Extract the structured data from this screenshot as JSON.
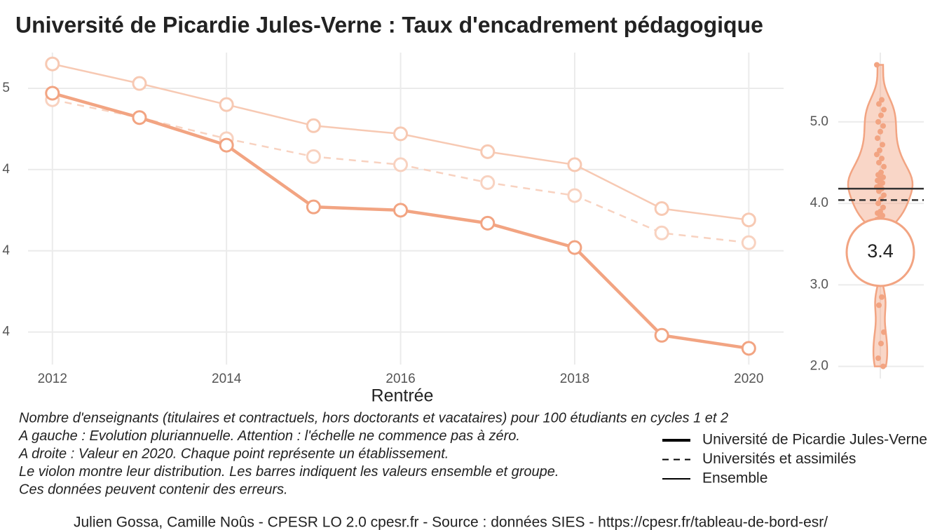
{
  "chart_data": [
    {
      "type": "line",
      "title": "Université de Picardie Jules-Verne  :  Taux d'encadrement pédagogique",
      "x_label": "Rentrée",
      "x": [
        2012,
        2013,
        2014,
        2015,
        2016,
        2017,
        2018,
        2019,
        2020
      ],
      "xlim": [
        2011.72,
        2020.4
      ],
      "xticks": [
        2012,
        2014,
        2016,
        2018,
        2020
      ],
      "ylim": [
        3.3,
        5.22
      ],
      "yticks": [
        {
          "value": 5.0,
          "label": "5"
        },
        {
          "value": 4.5,
          "label": "4"
        },
        {
          "value": 4.0,
          "label": "4"
        },
        {
          "value": 3.5,
          "label": "4"
        }
      ],
      "grid": true,
      "series": [
        {
          "name": "Ensemble",
          "color": "#f7c9b3",
          "dashed": false,
          "width": 2.5,
          "values": [
            5.15,
            5.03,
            4.9,
            4.77,
            4.72,
            4.61,
            4.53,
            4.26,
            4.19
          ]
        },
        {
          "name": "Universités et assimilés",
          "color": "#f8d2c0",
          "dashed": true,
          "width": 2.5,
          "values": [
            4.93,
            4.82,
            4.69,
            4.58,
            4.53,
            4.42,
            4.34,
            4.11,
            4.05
          ]
        },
        {
          "name": "Université de Picardie Jules-Verne",
          "color": "#f2a482",
          "dashed": false,
          "width": 4.5,
          "values": [
            4.97,
            4.82,
            4.65,
            4.27,
            4.25,
            4.17,
            4.02,
            3.48,
            3.4
          ]
        }
      ],
      "legend_order": [
        2,
        1,
        0
      ],
      "caption": [
        "Nombre d'enseignants (titulaires et contractuels, hors doctorants et vacataires) pour 100 étudiants en cycles 1 et 2",
        "A gauche : Evolution pluriannuelle. Attention : l'échelle ne commence pas à zéro.",
        "A droite : Valeur en 2020. Chaque point représente un établissement.",
        "Le violon montre leur distribution. Les barres indiquent les valeurs ensemble et groupe.",
        "Ces données peuvent contenir des erreurs."
      ],
      "footer": "Julien Gossa, Camille Noûs - CPESR LO 2.0 cpesr.fr - Source : données SIES - https://cpesr.fr/tableau-de-bord-esr/"
    },
    {
      "type": "violin",
      "color": "#f2a482",
      "ylim": [
        1.85,
        5.85
      ],
      "yticks": [
        {
          "value": 2,
          "label": "2.0"
        },
        {
          "value": 3,
          "label": "3.0"
        },
        {
          "value": 4,
          "label": "4.0"
        },
        {
          "value": 5,
          "label": "5.0"
        }
      ],
      "grid": true,
      "values": [
        5.7,
        5.27,
        5.22,
        5.15,
        5.08,
        5.0,
        4.95,
        4.88,
        4.8,
        4.72,
        4.65,
        4.6,
        4.55,
        4.5,
        4.45,
        4.38,
        4.35,
        4.32,
        4.3,
        4.28,
        4.25,
        4.22,
        4.2,
        4.18,
        4.15,
        4.1,
        4.05,
        4.0,
        3.95,
        3.9,
        3.88,
        3.85,
        3.82,
        3.8,
        2.85,
        2.75,
        2.42,
        2.28,
        2.1,
        2.0
      ],
      "reference_lines": [
        {
          "value": 4.18,
          "dashed": false
        },
        {
          "value": 4.04,
          "dashed": true
        }
      ],
      "highlight": 3.4
    }
  ]
}
